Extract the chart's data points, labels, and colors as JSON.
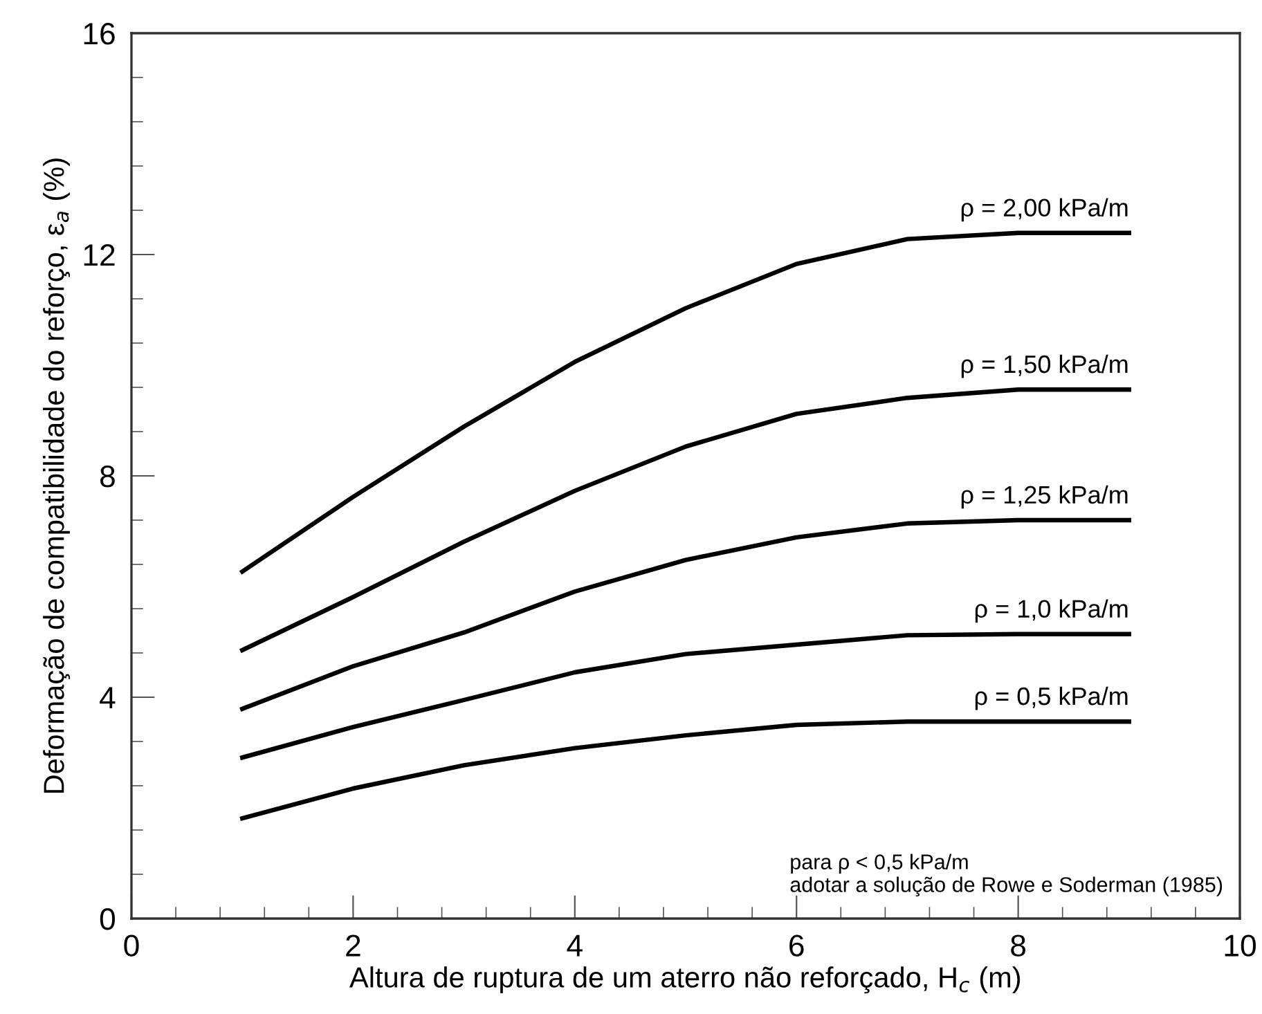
{
  "chart_data": {
    "type": "line",
    "xlabel": "Altura de ruptura de um aterro não reforçado, H$_{c}$ (m)",
    "ylabel": "Deformação de compatibilidade do reforço, ε$_{a}$ (%)",
    "x": [
      1,
      2,
      3,
      4,
      5,
      6,
      7,
      8,
      9
    ],
    "series": [
      {
        "name": "ρ = 2,00 kPa/m",
        "color": "#000000",
        "values": [
          6.27,
          7.62,
          8.89,
          10.06,
          11.03,
          11.83,
          12.28,
          12.39,
          12.39
        ]
      },
      {
        "name": "ρ = 1,50 kPa/m",
        "color": "#000000",
        "values": [
          4.85,
          5.81,
          6.81,
          7.73,
          8.53,
          9.12,
          9.41,
          9.56,
          9.56
        ]
      },
      {
        "name": "ρ = 1,25 kPa/m",
        "color": "#000000",
        "values": [
          3.79,
          4.56,
          5.17,
          5.91,
          6.48,
          6.89,
          7.14,
          7.2,
          7.2
        ]
      },
      {
        "name": "ρ = 1,0 kPa/m",
        "color": "#000000",
        "values": [
          2.91,
          3.46,
          3.95,
          4.45,
          4.78,
          4.95,
          5.12,
          5.14,
          5.14
        ]
      },
      {
        "name": "ρ = 0,5 kPa/m",
        "color": "#000000",
        "values": [
          1.81,
          2.35,
          2.77,
          3.08,
          3.31,
          3.5,
          3.56,
          3.56,
          3.56
        ]
      }
    ],
    "xlim": [
      0,
      10
    ],
    "xticks": [
      0,
      2,
      4,
      6,
      8,
      10
    ],
    "ylim": [
      0,
      16
    ],
    "yticks": [
      0,
      4,
      8,
      12,
      16
    ],
    "grid": false,
    "legend": false,
    "marker": "none",
    "line_style": "solid",
    "annotations": [
      "para ρ < 0,5 kPa/m\nadotar a solução de Rowe e Soderman (1985)"
    ]
  }
}
